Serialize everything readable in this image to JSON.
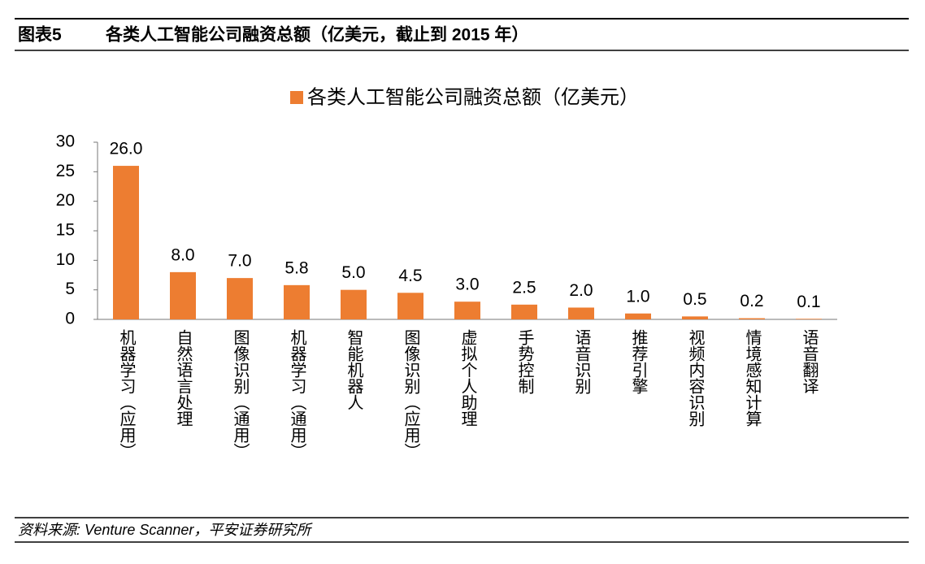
{
  "chart_data": {
    "type": "bar",
    "figure_label": "图表5",
    "title": "各类人工智能公司融资总额（亿美元，截止到 2015 年）",
    "source": "资料来源: Venture Scanner，平安证券研究所",
    "categories": [
      "机器学习（应用）",
      "自然语言处理",
      "图像识别（通用）",
      "机器学习（通用）",
      "智能机器人",
      "图像识别（应用）",
      "虚拟个人助理",
      "手势控制",
      "语音识别",
      "推荐引擎",
      "视频内容识别",
      "情境感知计算",
      "语音翻译"
    ],
    "series": [
      {
        "name": "各类人工智能公司融资总额（亿美元）",
        "color": "#ed7d31",
        "values": [
          26,
          8,
          7,
          5.8,
          5,
          4.5,
          3,
          2.5,
          2,
          1,
          0.5,
          0.2,
          0.1
        ],
        "value_labels": [
          "26.0",
          "8.0",
          "7.0",
          "5.8",
          "5.0",
          "4.5",
          "3.0",
          "2.5",
          "2.0",
          "1.0",
          "0.5",
          "0.2",
          "0.1"
        ]
      }
    ],
    "ylim": [
      0,
      30
    ],
    "yticks": [
      0,
      5,
      10,
      15,
      20,
      25,
      30
    ],
    "legend": "top"
  }
}
